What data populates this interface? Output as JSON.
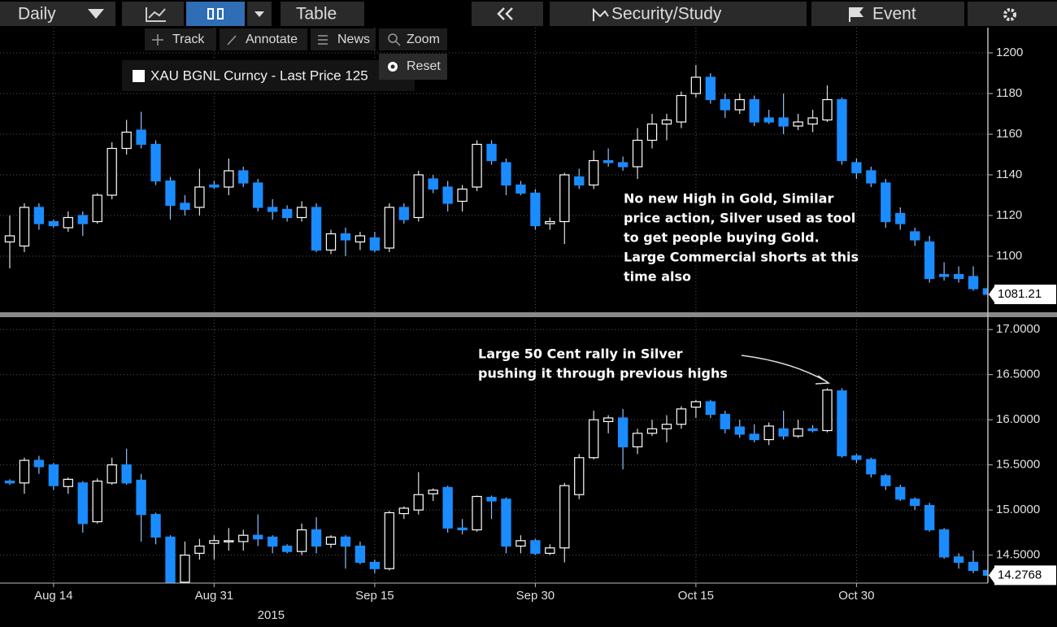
{
  "toolbar": {
    "period": "Daily",
    "view": "Table",
    "security": "Security/Study",
    "event": "Event"
  },
  "sub_toolbar": {
    "track": "Track",
    "annotate": "Annotate",
    "news": "News",
    "zoom": "Zoom",
    "reset": "Reset"
  },
  "chart_data": [
    {
      "type": "candlestick",
      "legend": "XAU BGNL Curncy - Last Price 125",
      "up_color": "#ffffff",
      "down_color": "#1a8cff",
      "grid": true,
      "ylim": [
        1072.8,
        1214
      ],
      "yticks": [
        1100,
        1120,
        1140,
        1160,
        1180,
        1200
      ],
      "annotation": [
        "No new High in Gold, Similar",
        "price action, Silver used as tool",
        "to get people buying Gold.",
        "Large Commercial shorts at this",
        "time also"
      ],
      "open": [
        1107,
        1105,
        1124,
        1117,
        1114,
        1120,
        1117,
        1130,
        1153,
        1162,
        1155,
        1137,
        1126,
        1124,
        1135,
        1134,
        1142,
        1136,
        1124,
        1123,
        1119,
        1124,
        1103,
        1111,
        1107,
        1109,
        1104,
        1124,
        1119,
        1138,
        1134,
        1127,
        1134,
        1155,
        1146,
        1135,
        1131,
        1116,
        1117,
        1139,
        1135,
        1147,
        1146,
        1144,
        1157,
        1165,
        1166,
        1180,
        1188,
        1177,
        1172,
        1177,
        1168,
        1168,
        1164,
        1165,
        1167,
        1177,
        1146,
        1142,
        1136,
        1121,
        1112,
        1107,
        1091,
        1091,
        1090,
        1084
      ],
      "close": [
        1110,
        1124,
        1116,
        1115,
        1119,
        1116,
        1130,
        1153,
        1161,
        1155,
        1137,
        1125,
        1123,
        1134,
        1134,
        1142,
        1136,
        1124,
        1122,
        1119,
        1124,
        1103,
        1111,
        1108,
        1110,
        1103,
        1124,
        1118,
        1140,
        1133,
        1126,
        1133,
        1155,
        1147,
        1135,
        1131,
        1115,
        1117,
        1140,
        1135,
        1147,
        1146,
        1144,
        1157,
        1165,
        1167,
        1179,
        1188,
        1177,
        1172,
        1177,
        1166,
        1166,
        1164,
        1166,
        1168,
        1177,
        1147,
        1141,
        1136,
        1117,
        1116,
        1108,
        1089,
        1090,
        1089,
        1084,
        1081.21
      ],
      "high": [
        1120,
        1126,
        1126,
        1118,
        1122,
        1122,
        1131,
        1156,
        1167,
        1171,
        1157,
        1139,
        1130,
        1143,
        1137,
        1148,
        1144,
        1138,
        1128,
        1125,
        1127,
        1126,
        1113,
        1114,
        1112,
        1112,
        1126,
        1126,
        1142,
        1140,
        1137,
        1135,
        1157,
        1157,
        1148,
        1137,
        1133,
        1119,
        1141,
        1143,
        1152,
        1153,
        1149,
        1163,
        1170,
        1170,
        1181,
        1194,
        1190,
        1180,
        1180,
        1179,
        1172,
        1180,
        1170,
        1172,
        1184,
        1178,
        1148,
        1144,
        1138,
        1124,
        1114,
        1110,
        1097,
        1095,
        1095,
        1086
      ],
      "low": [
        1094,
        1102,
        1113,
        1114,
        1112,
        1110,
        1116,
        1128,
        1150,
        1153,
        1135,
        1118,
        1120,
        1120,
        1133,
        1130,
        1134,
        1122,
        1118,
        1117,
        1117,
        1102,
        1101,
        1100,
        1103,
        1102,
        1102,
        1116,
        1117,
        1131,
        1122,
        1122,
        1132,
        1145,
        1130,
        1130,
        1113,
        1113,
        1106,
        1133,
        1133,
        1144,
        1142,
        1138,
        1153,
        1157,
        1163,
        1178,
        1175,
        1168,
        1170,
        1164,
        1165,
        1160,
        1162,
        1161,
        1166,
        1145,
        1138,
        1134,
        1114,
        1113,
        1105,
        1087,
        1088,
        1087,
        1083,
        1080
      ]
    },
    {
      "type": "candlestick",
      "up_color": "#ffffff",
      "down_color": "#1a8cff",
      "grid": true,
      "categories": [
        null,
        null,
        null,
        "Aug 14",
        null,
        null,
        null,
        null,
        null,
        null,
        null,
        null,
        null,
        null,
        "Aug 31",
        null,
        null,
        null,
        null,
        null,
        null,
        null,
        null,
        null,
        null,
        "Sep 15",
        null,
        null,
        null,
        null,
        null,
        null,
        null,
        null,
        null,
        null,
        "Sep 30",
        null,
        null,
        null,
        null,
        null,
        null,
        null,
        null,
        null,
        null,
        "Oct 15",
        null,
        null,
        null,
        null,
        null,
        null,
        null,
        null,
        null,
        null,
        "Oct 30",
        null,
        null,
        null,
        null,
        null,
        null,
        null,
        null,
        null
      ],
      "x_year_label": "2015",
      "ylim": [
        14.19,
        17.11
      ],
      "yticks": [
        {
          "value": 14.5,
          "label": "14.5000"
        },
        {
          "value": 15,
          "label": "15.0000"
        },
        {
          "value": 15.5,
          "label": "15.5000"
        },
        {
          "value": 16,
          "label": "16.0000"
        },
        {
          "value": 16.5,
          "label": "16.5000"
        },
        {
          "value": 17,
          "label": "17.0000"
        }
      ],
      "annotation": [
        "Large 50 Cent rally in Silver",
        "pushing it through previous highs"
      ],
      "open": [
        15.32,
        15.3,
        15.55,
        15.5,
        15.26,
        15.3,
        14.87,
        15.3,
        15.5,
        15.33,
        14.95,
        14.7,
        14.2,
        14.52,
        14.63,
        14.65,
        14.65,
        14.72,
        14.7,
        14.6,
        14.54,
        14.78,
        14.62,
        14.7,
        14.6,
        14.42,
        14.35,
        14.96,
        15.0,
        15.18,
        15.25,
        14.8,
        14.78,
        15.14,
        15.12,
        14.6,
        14.66,
        14.52,
        14.58,
        15.17,
        15.58,
        15.98,
        16.02,
        15.7,
        15.85,
        15.9,
        15.95,
        16.14,
        16.2,
        16.06,
        15.92,
        15.84,
        15.78,
        15.9,
        15.82,
        15.9,
        15.88,
        16.32,
        15.6,
        15.56,
        15.38,
        15.25,
        15.12,
        15.05,
        14.78,
        14.48,
        14.42,
        14.33
      ],
      "close": [
        15.3,
        15.55,
        15.48,
        15.27,
        15.34,
        14.85,
        15.32,
        15.5,
        15.3,
        14.95,
        14.7,
        14.2,
        14.5,
        14.6,
        14.66,
        14.66,
        14.72,
        14.68,
        14.6,
        14.54,
        14.78,
        14.6,
        14.7,
        14.6,
        14.42,
        14.35,
        14.97,
        15.02,
        15.17,
        15.22,
        14.8,
        14.78,
        15.15,
        15.1,
        14.6,
        14.66,
        14.52,
        14.58,
        15.27,
        15.58,
        16.0,
        16.02,
        15.7,
        15.85,
        15.9,
        15.95,
        16.12,
        16.2,
        16.06,
        15.9,
        15.84,
        15.78,
        15.93,
        15.82,
        15.9,
        15.88,
        16.33,
        15.6,
        15.56,
        15.4,
        15.27,
        15.12,
        15.05,
        14.78,
        14.48,
        14.42,
        14.33,
        14.2768
      ],
      "high": [
        15.34,
        15.58,
        15.6,
        15.52,
        15.36,
        15.32,
        15.35,
        15.58,
        15.68,
        15.4,
        14.97,
        14.72,
        14.65,
        14.68,
        14.72,
        14.8,
        14.78,
        14.95,
        14.72,
        14.62,
        14.85,
        14.92,
        14.72,
        14.72,
        14.65,
        14.45,
        14.99,
        15.04,
        15.42,
        15.24,
        15.27,
        14.9,
        15.16,
        15.16,
        15.14,
        14.72,
        14.68,
        14.62,
        15.3,
        15.62,
        16.1,
        16.05,
        16.12,
        15.9,
        16.0,
        16.05,
        16.15,
        16.22,
        16.22,
        16.1,
        16.0,
        15.95,
        15.97,
        16.1,
        16.0,
        15.94,
        16.35,
        16.35,
        15.62,
        15.58,
        15.4,
        15.28,
        15.14,
        15.08,
        14.8,
        14.52,
        14.55,
        14.35
      ],
      "low": [
        15.28,
        15.18,
        15.4,
        15.22,
        15.18,
        14.75,
        14.85,
        15.28,
        15.28,
        14.65,
        14.62,
        14.19,
        14.19,
        14.45,
        14.45,
        14.55,
        14.55,
        14.6,
        14.52,
        14.52,
        14.5,
        14.52,
        14.58,
        14.35,
        14.4,
        14.3,
        14.33,
        14.9,
        14.95,
        15.1,
        14.75,
        14.73,
        14.76,
        14.9,
        14.52,
        14.52,
        14.5,
        14.5,
        14.42,
        15.12,
        15.56,
        15.85,
        15.45,
        15.62,
        15.82,
        15.75,
        15.9,
        16.02,
        16.02,
        15.85,
        15.8,
        15.75,
        15.72,
        15.78,
        15.8,
        15.86,
        15.86,
        15.58,
        15.52,
        15.36,
        15.22,
        15.1,
        15.0,
        14.76,
        14.46,
        14.35,
        14.3,
        14.25
      ]
    }
  ]
}
